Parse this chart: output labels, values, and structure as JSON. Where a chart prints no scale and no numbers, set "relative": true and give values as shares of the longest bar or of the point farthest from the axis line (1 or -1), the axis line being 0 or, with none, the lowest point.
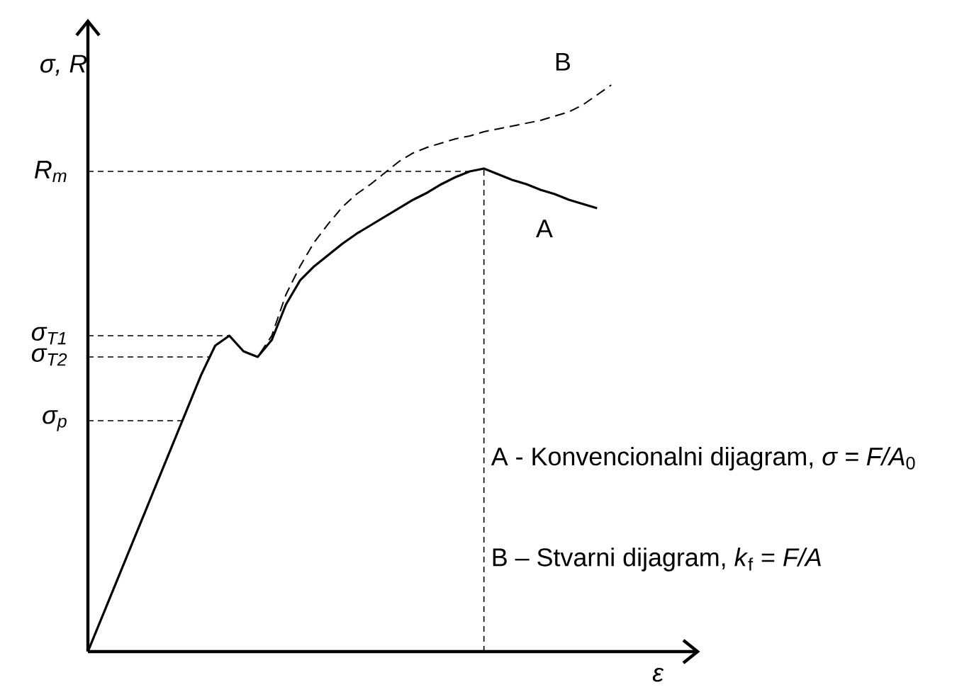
{
  "chart_data": {
    "type": "line",
    "relative": true,
    "xlabel": "ε",
    "ylabel": "σ, R",
    "categories": [
      null,
      null,
      null,
      null,
      null,
      null,
      null,
      null,
      null,
      null,
      null,
      null,
      null,
      null,
      null,
      null,
      null,
      null,
      null,
      null,
      null,
      null,
      null,
      null,
      null,
      null,
      null,
      null,
      null,
      null,
      null,
      null,
      null,
      null,
      null,
      null,
      null,
      null
    ],
    "series": [
      {
        "name": "A",
        "color": "#000000",
        "line_style": "solid",
        "values": [
          0,
          0.061,
          0.122,
          0.183,
          0.244,
          0.305,
          0.366,
          0.427,
          0.488,
          0.54,
          0.5575,
          0.53,
          0.52,
          0.55,
          0.6125,
          0.655,
          0.68,
          0.7,
          0.72,
          0.7375,
          0.7525,
          0.7675,
          0.7825,
          0.7975,
          0.81,
          0.825,
          0.8375,
          0.8475,
          0.8525,
          0.8425,
          0.8325,
          0.825,
          0.815,
          0.8075,
          0.7975,
          0.79,
          0.7825,
          null
        ]
      },
      {
        "name": "B",
        "color": "#000000",
        "line_style": "dashed",
        "values": [
          0,
          0.061,
          0.122,
          0.183,
          0.244,
          0.305,
          0.366,
          0.427,
          0.488,
          0.54,
          0.5575,
          0.53,
          0.52,
          0.5575,
          0.63,
          0.68,
          0.7225,
          0.755,
          0.785,
          0.8075,
          0.825,
          0.845,
          0.865,
          0.88,
          0.89,
          0.8975,
          0.905,
          0.91,
          0.9175,
          0.9225,
          0.9275,
          0.9325,
          0.9375,
          0.945,
          0.9525,
          0.965,
          0.9825,
          1.0
        ]
      }
    ],
    "ref_lines": [
      {
        "axis": "y",
        "value": 0.8475,
        "label": "R$_{m}$",
        "line_style": "dashed"
      },
      {
        "axis": "y",
        "value": 0.5575,
        "label": "σ$_{T1}$",
        "line_style": "dashed"
      },
      {
        "axis": "y",
        "value": 0.52,
        "label": "σ$_{T2}$",
        "line_style": "dashed"
      },
      {
        "axis": "y",
        "value": 0.4075,
        "label": "σ$_{p}$",
        "line_style": "dashed"
      }
    ],
    "annotations": [
      "A - Konvencionalni dijagram, *σ = F/A*$_{0}$",
      "B – Stvarni dijagram, *k*$_{f}$ = *F/A*"
    ]
  }
}
